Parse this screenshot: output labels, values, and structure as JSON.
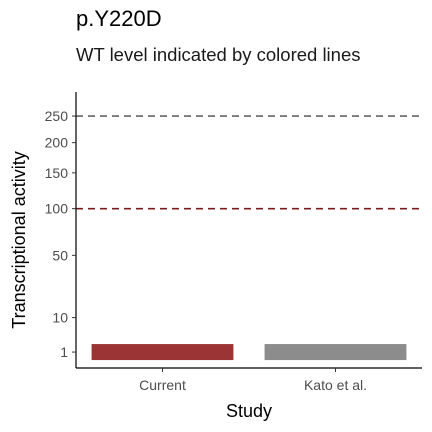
{
  "chart_data": {
    "type": "bar",
    "title": "p.Y220D",
    "subtitle": "WT level indicated by colored lines",
    "xlabel": "Study",
    "ylabel": "Transcriptional activity",
    "categories": [
      "Current",
      "Kato et al."
    ],
    "values": [
      1,
      1
    ],
    "bar_colors": [
      "#9b3535",
      "#8c8c8c"
    ],
    "y_scale": "sqrt",
    "y_ticks": [
      1,
      10,
      50,
      100,
      150,
      200,
      250
    ],
    "ylim": [
      0,
      300
    ],
    "reference_lines": [
      {
        "value": 250,
        "color": "#666666",
        "style": "dashed"
      },
      {
        "value": 100,
        "color": "#7a1c1c",
        "style": "dashed"
      }
    ],
    "grid": false
  }
}
